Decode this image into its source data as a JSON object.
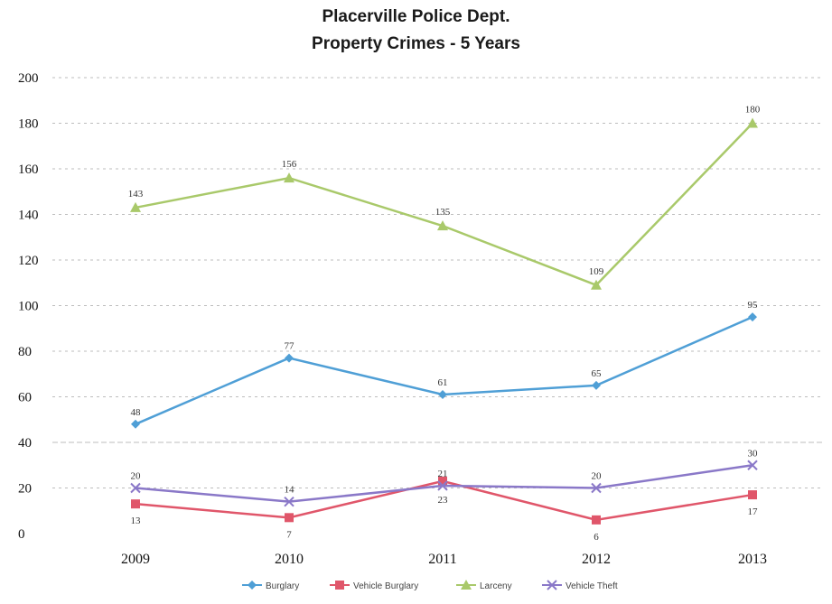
{
  "chart_data": {
    "type": "line",
    "title": "Placerville Police Dept.",
    "subtitle": "Property Crimes - 5 Years",
    "categories": [
      "2009",
      "2010",
      "2011",
      "2012",
      "2013"
    ],
    "y_ticks": [
      "200",
      "180",
      "160",
      "140",
      "120",
      "100",
      "80",
      "60",
      "40",
      "20",
      "0"
    ],
    "ylim": [
      0,
      200
    ],
    "grid": true,
    "legend_position": "bottom",
    "series": [
      {
        "name": "Burglary",
        "color": "#4f9fd6",
        "marker": "diamond",
        "values": [
          48,
          77,
          61,
          65,
          95
        ],
        "labels": [
          "48",
          "77",
          "61",
          "65",
          "95"
        ]
      },
      {
        "name": "Vehicle Burglary",
        "color": "#e0566a",
        "marker": "square",
        "values": [
          13,
          7,
          23,
          6,
          17
        ],
        "labels": [
          "13",
          "7",
          "23",
          "6",
          "17"
        ]
      },
      {
        "name": "Larceny",
        "color": "#a9c96a",
        "marker": "triangle",
        "values": [
          143,
          156,
          135,
          109,
          180
        ],
        "labels": [
          "143",
          "156",
          "135",
          "109",
          "180"
        ]
      },
      {
        "name": "Vehicle Theft",
        "color": "#8a78c8",
        "marker": "x",
        "values": [
          20,
          14,
          21,
          20,
          30
        ],
        "labels": [
          "20",
          "14",
          "21",
          "20",
          "30"
        ]
      }
    ]
  }
}
